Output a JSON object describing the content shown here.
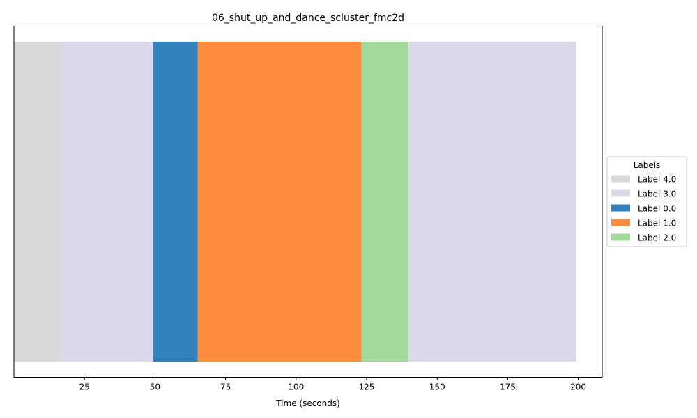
{
  "chart_data": {
    "type": "timeline-segments",
    "title": "06_shut_up_and_dance_scluster_fmc2d",
    "xlabel": "Time (seconds)",
    "xlim": [
      0,
      208.5
    ],
    "x_ticks": [
      25,
      50,
      75,
      100,
      125,
      150,
      175,
      200
    ],
    "segments": [
      {
        "label": "Label 4.0",
        "start": 0,
        "end": 17.1
      },
      {
        "label": "Label 3.0",
        "start": 17.1,
        "end": 49.3
      },
      {
        "label": "Label 0.0",
        "start": 49.3,
        "end": 65.1
      },
      {
        "label": "Label 1.0",
        "start": 65.1,
        "end": 123.2
      },
      {
        "label": "Label 2.0",
        "start": 123.2,
        "end": 139.6
      },
      {
        "label": "Label 3.0",
        "start": 139.6,
        "end": 199.3
      }
    ],
    "legend": {
      "title": "Labels",
      "placement": "center-right outside",
      "entries": [
        {
          "label": "Label 4.0",
          "color": "#d9d9d9"
        },
        {
          "label": "Label 3.0",
          "color": "#dadaeb"
        },
        {
          "label": "Label 0.0",
          "color": "#3182bd"
        },
        {
          "label": "Label 1.0",
          "color": "#fd8d3c"
        },
        {
          "label": "Label 2.0",
          "color": "#a1d99b"
        }
      ]
    },
    "grid": false
  }
}
